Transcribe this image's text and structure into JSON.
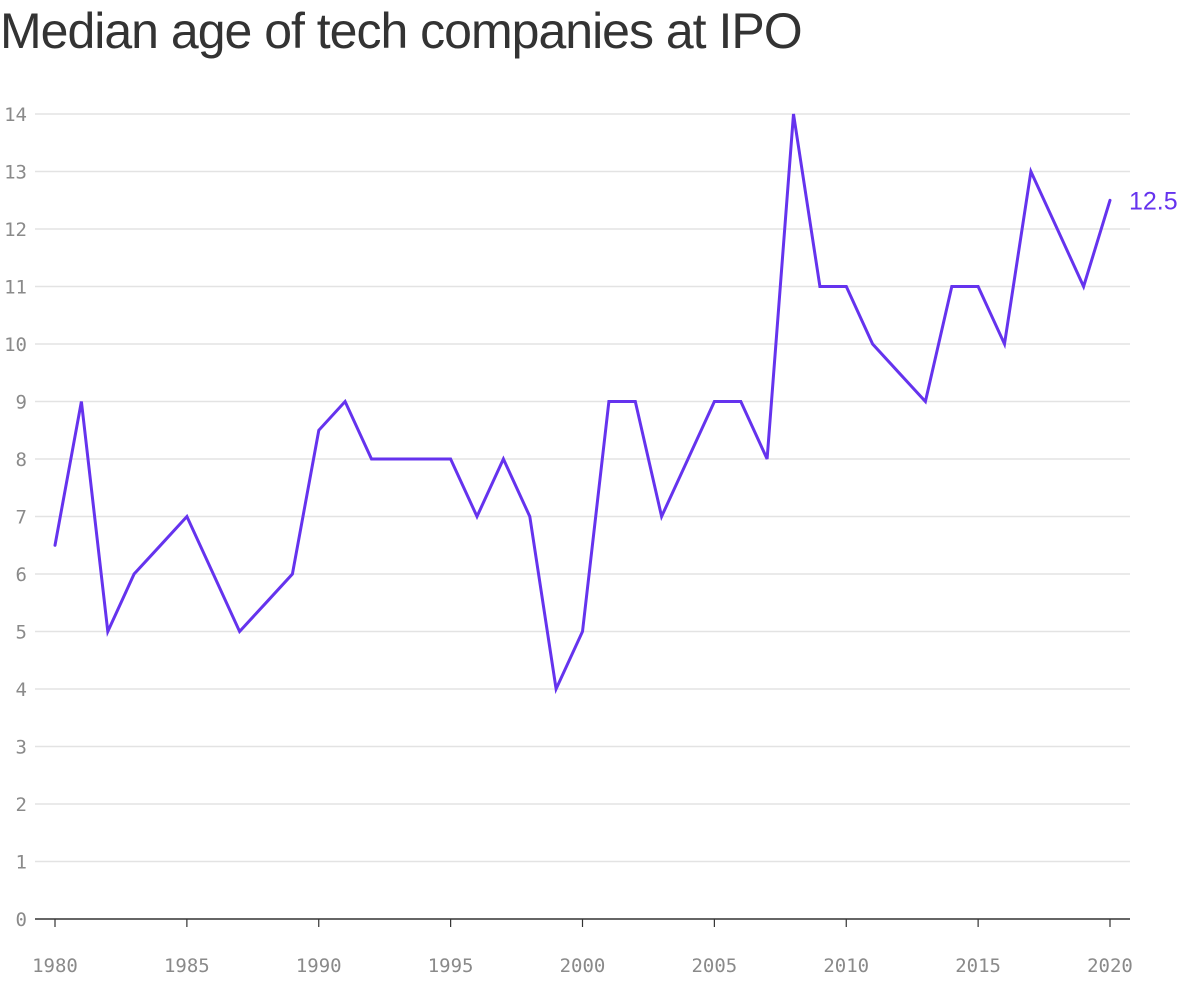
{
  "title": "Median age of tech companies at IPO",
  "colors": {
    "line": "#6533ee",
    "grid": "#e3e3e3",
    "axis": "#333333",
    "tick_text": "#8a8a8a",
    "title": "#333333"
  },
  "chart_data": {
    "type": "line",
    "title": "Median age of tech companies at IPO",
    "xlabel": "",
    "ylabel": "",
    "x": [
      1980,
      1981,
      1982,
      1983,
      1984,
      1985,
      1986,
      1987,
      1988,
      1989,
      1990,
      1991,
      1992,
      1993,
      1994,
      1995,
      1996,
      1997,
      1998,
      1999,
      2000,
      2001,
      2002,
      2003,
      2004,
      2005,
      2006,
      2007,
      2008,
      2009,
      2010,
      2011,
      2012,
      2013,
      2014,
      2015,
      2016,
      2017,
      2018,
      2019,
      2020
    ],
    "series": [
      {
        "values": [
          6.5,
          9,
          5,
          6,
          6.5,
          7,
          6,
          5,
          5.5,
          6,
          8.5,
          9,
          8,
          8,
          8,
          8,
          7,
          8,
          7,
          4,
          5,
          9,
          9,
          7,
          8,
          9,
          9,
          8,
          14,
          11,
          11,
          10,
          9.5,
          9,
          11,
          11,
          10,
          13,
          12,
          11,
          12.5
        ]
      }
    ],
    "xlim": [
      1980,
      2020
    ],
    "ylim": [
      0,
      14
    ],
    "x_ticks": [
      "1980",
      "1985",
      "1990",
      "1995",
      "2000",
      "2005",
      "2010",
      "2015",
      "2020"
    ],
    "y_ticks": [
      "0",
      "1",
      "2",
      "3",
      "4",
      "5",
      "6",
      "7",
      "8",
      "9",
      "10",
      "11",
      "12",
      "13",
      "14"
    ],
    "end_label": "12.5",
    "grid": true,
    "legend": "none"
  }
}
